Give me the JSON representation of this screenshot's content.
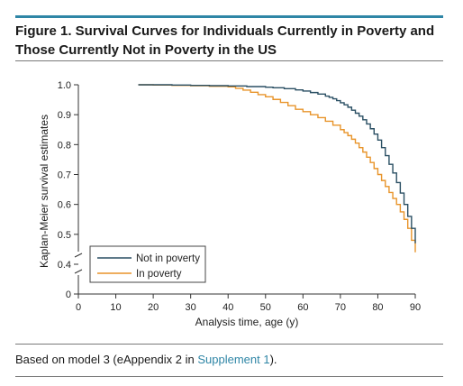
{
  "figure": {
    "title": "Figure 1. Survival Curves for Individuals Currently in Poverty and Those Currently Not in Poverty in the US",
    "caption": {
      "prefix": "Based on model 3 (eAppendix 2 in ",
      "link": "Supplement 1",
      "suffix": ")."
    },
    "accent_color": "#2f86a6"
  },
  "chart_data": {
    "type": "line",
    "xlabel": "Analysis time, age (y)",
    "ylabel": "Kaplan-Meier survival estimates",
    "xlim": [
      0,
      90
    ],
    "ylim": [
      0,
      1.0
    ],
    "y_axis_break": true,
    "x_ticks": [
      0,
      10,
      20,
      30,
      40,
      50,
      60,
      70,
      80,
      90
    ],
    "y_ticks": [
      0,
      0.4,
      0.5,
      0.6,
      0.7,
      0.8,
      0.9,
      1.0
    ],
    "y_tick_labels": [
      "0",
      "0.4",
      "0.5",
      "0.6",
      "0.7",
      "0.8",
      "0.9",
      "1.0"
    ],
    "grid": false,
    "legend_position": "bottom-left",
    "series": [
      {
        "name": "Not in poverty",
        "color": "#2a4f63",
        "step": true,
        "x": [
          16,
          20,
          25,
          30,
          35,
          40,
          45,
          50,
          52,
          55,
          58,
          60,
          62,
          64,
          66,
          67,
          68,
          69,
          70,
          71,
          72,
          73,
          74,
          75,
          76,
          77,
          78,
          79,
          80,
          81,
          82,
          83,
          84,
          85,
          86,
          87,
          88,
          89,
          90
        ],
        "y": [
          1.0,
          1.0,
          0.999,
          0.998,
          0.997,
          0.996,
          0.994,
          0.992,
          0.99,
          0.987,
          0.983,
          0.979,
          0.974,
          0.969,
          0.962,
          0.958,
          0.953,
          0.947,
          0.94,
          0.933,
          0.925,
          0.915,
          0.905,
          0.895,
          0.883,
          0.869,
          0.853,
          0.835,
          0.815,
          0.79,
          0.763,
          0.734,
          0.705,
          0.673,
          0.638,
          0.6,
          0.56,
          0.52,
          0.47
        ]
      },
      {
        "name": "In poverty",
        "color": "#e8942a",
        "step": true,
        "x": [
          16,
          20,
          25,
          30,
          35,
          40,
          42,
          44,
          46,
          48,
          50,
          52,
          54,
          56,
          58,
          60,
          62,
          64,
          66,
          68,
          70,
          71,
          72,
          73,
          74,
          75,
          76,
          77,
          78,
          79,
          80,
          81,
          82,
          83,
          84,
          85,
          86,
          87,
          88,
          89,
          90
        ],
        "y": [
          1.0,
          0.999,
          0.998,
          0.997,
          0.995,
          0.993,
          0.988,
          0.982,
          0.975,
          0.967,
          0.96,
          0.951,
          0.941,
          0.93,
          0.918,
          0.91,
          0.9,
          0.89,
          0.878,
          0.865,
          0.85,
          0.84,
          0.83,
          0.818,
          0.805,
          0.79,
          0.775,
          0.758,
          0.74,
          0.72,
          0.7,
          0.68,
          0.66,
          0.64,
          0.62,
          0.6,
          0.575,
          0.55,
          0.52,
          0.48,
          0.44
        ]
      }
    ]
  }
}
